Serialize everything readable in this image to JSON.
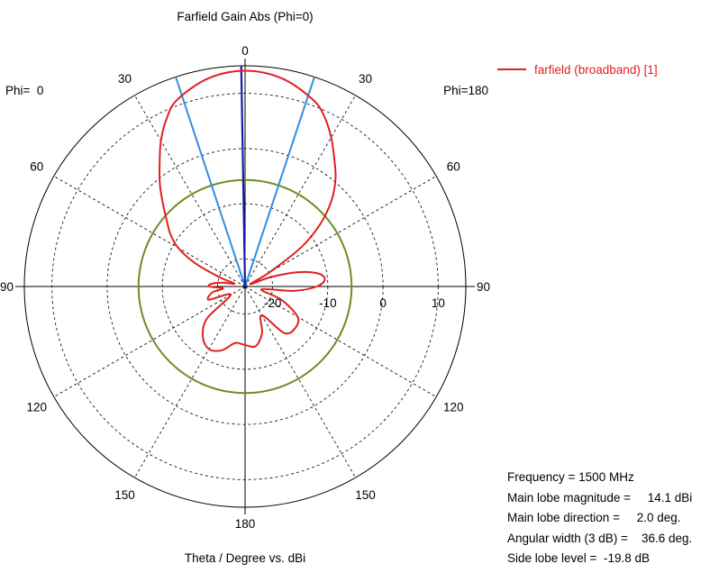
{
  "chart_data": {
    "type": "polar",
    "title": "Farfield Gain Abs (Phi=0)",
    "xlabel": "Theta / Degree vs. dBi",
    "left_label": "Phi=  0",
    "right_label": "Phi=180",
    "angle_ticks_left": [
      "0",
      "30",
      "60",
      "90",
      "120",
      "150",
      "180"
    ],
    "angle_ticks_right": [
      "30",
      "60",
      "90",
      "120",
      "150"
    ],
    "radial_ticks": [
      "-20",
      "-10",
      "0",
      "10"
    ],
    "r_range": [
      -25,
      15
    ],
    "grid": true,
    "legend": {
      "position": "top-right",
      "entries": [
        "farfield (broadband) [1]"
      ]
    },
    "colors": {
      "series": "#e02020",
      "main_lobe": "#1a1aaa",
      "beamwidth": "#2f8fe0",
      "sidelobe_circle": "#6b8e23"
    },
    "series": [
      {
        "name": "farfield (broadband) [1]",
        "theta_deg": [
          0,
          10,
          20,
          25,
          30,
          35,
          40,
          45,
          50,
          55,
          60,
          65,
          70,
          75,
          80,
          85,
          90,
          95,
          100,
          110,
          120,
          130,
          140,
          150,
          160,
          170,
          180,
          190,
          200,
          210,
          220,
          230,
          240,
          250,
          260,
          265,
          270,
          275,
          280,
          285,
          290,
          295,
          300,
          305,
          310,
          315,
          320,
          325,
          330,
          335,
          340,
          350
        ],
        "gain_dbi": [
          14.1,
          13.3,
          11.0,
          9.0,
          6.2,
          3.2,
          0.5,
          -2.8,
          -7.0,
          -12.5,
          -20,
          -24,
          -20,
          -15,
          -11.5,
          -10.5,
          -12.0,
          -16,
          -22,
          -18,
          -14,
          -13.2,
          -14,
          -19,
          -16,
          -14.0,
          -14.4,
          -14.6,
          -12.7,
          -11.9,
          -13.1,
          -16,
          -22,
          -18,
          -19,
          -21,
          -18.5,
          -19,
          -21,
          -23,
          -20,
          -15,
          -11,
          -8.5,
          -6.5,
          -4.0,
          -1.0,
          2.0,
          5.5,
          8.6,
          11.0,
          13.3
        ]
      }
    ],
    "main_lobe_direction_deg": 2.0,
    "beamwidth_lines_deg": [
      -18.3,
      18.3
    ],
    "sidelobe_level_dbi": -5.7
  },
  "info": {
    "frequency": "Frequency = 1500 MHz",
    "magnitude": "Main lobe magnitude =     14.1 dBi",
    "direction": "Main lobe direction =     2.0 deg.",
    "width": "Angular width (3 dB) =    36.6 deg.",
    "sidelobe": "Side lobe level =  -19.8 dB"
  }
}
